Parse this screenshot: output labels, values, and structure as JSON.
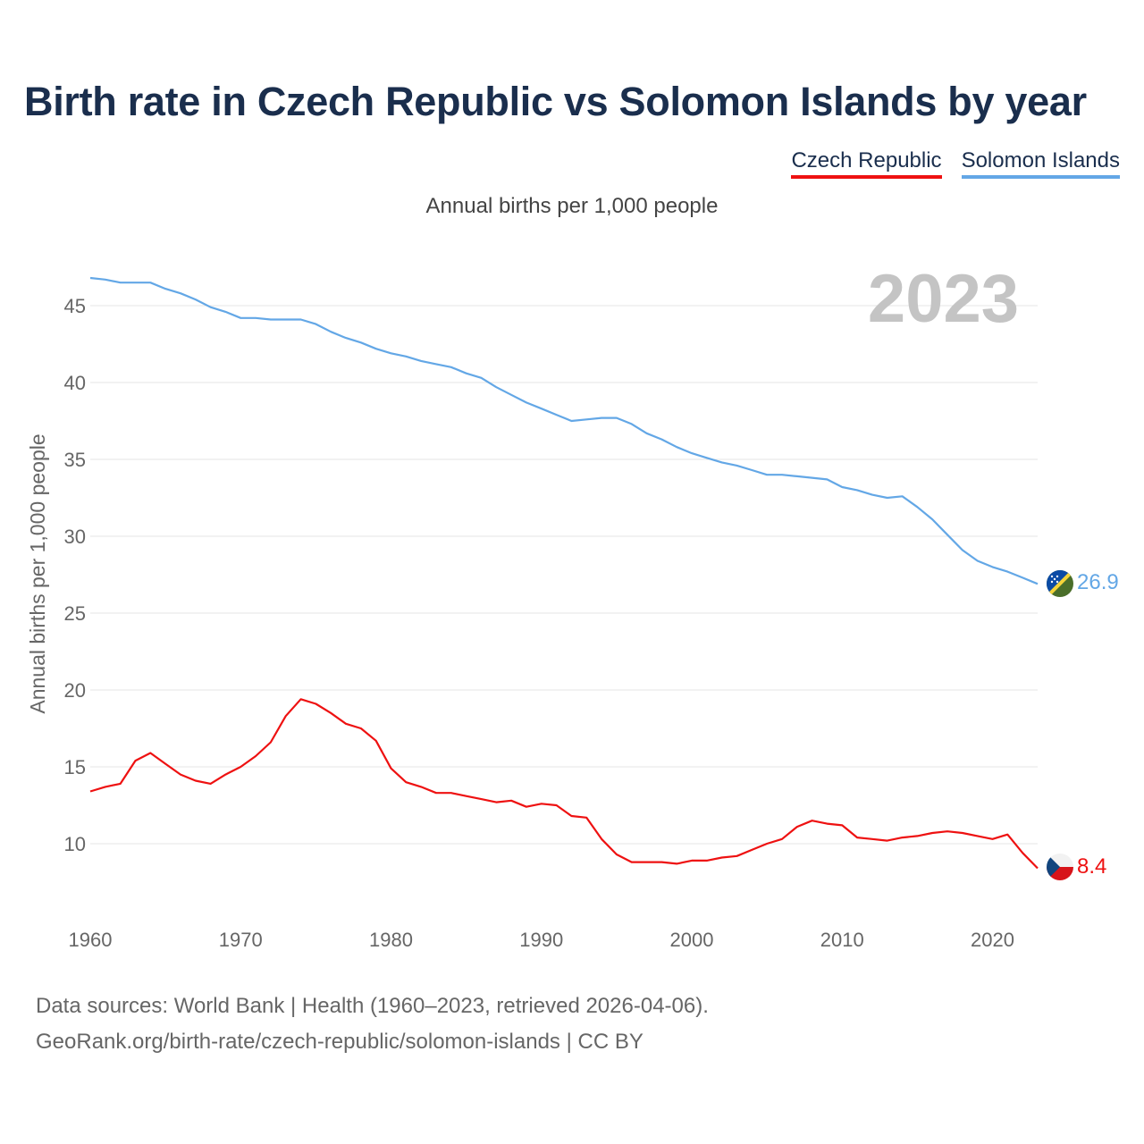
{
  "title": "Birth rate in Czech Republic vs Solomon Islands by year",
  "legend": [
    {
      "label": "Czech Republic",
      "color": "#ee1111"
    },
    {
      "label": "Solomon Islands",
      "color": "#63a7e6"
    }
  ],
  "subtitle": "Annual births per 1,000 people",
  "footer": {
    "line1": "Data sources: World Bank | Health (1960–2023, retrieved 2026-04-06).",
    "line2": "GeoRank.org/birth-rate/czech-republic/solomon-islands | CC BY"
  },
  "chart_data": {
    "type": "line",
    "title": "Birth rate in Czech Republic vs Solomon Islands by year",
    "ylabel": "Annual births per 1,000 people",
    "xlabel": "",
    "year_label": "2023",
    "xlim": [
      1960,
      2023
    ],
    "ylim": [
      5,
      47
    ],
    "yticks": [
      10,
      15,
      20,
      25,
      30,
      35,
      40,
      45
    ],
    "xticks": [
      1960,
      1970,
      1980,
      1990,
      2000,
      2010,
      2020
    ],
    "grid": true,
    "x": [
      1960,
      1961,
      1962,
      1963,
      1964,
      1965,
      1966,
      1967,
      1968,
      1969,
      1970,
      1971,
      1972,
      1973,
      1974,
      1975,
      1976,
      1977,
      1978,
      1979,
      1980,
      1981,
      1982,
      1983,
      1984,
      1985,
      1986,
      1987,
      1988,
      1989,
      1990,
      1991,
      1992,
      1993,
      1994,
      1995,
      1996,
      1997,
      1998,
      1999,
      2000,
      2001,
      2002,
      2003,
      2004,
      2005,
      2006,
      2007,
      2008,
      2009,
      2010,
      2011,
      2012,
      2013,
      2014,
      2015,
      2016,
      2017,
      2018,
      2019,
      2020,
      2021,
      2022,
      2023
    ],
    "series": [
      {
        "name": "Czech Republic",
        "color": "#ee1111",
        "end_label": "8.4",
        "values": [
          13.4,
          13.7,
          13.9,
          15.4,
          15.9,
          15.2,
          14.5,
          14.1,
          13.9,
          14.5,
          15.0,
          15.7,
          16.6,
          18.3,
          19.4,
          19.1,
          18.5,
          17.8,
          17.5,
          16.7,
          14.9,
          14.0,
          13.7,
          13.3,
          13.3,
          13.1,
          12.9,
          12.7,
          12.8,
          12.4,
          12.6,
          12.5,
          11.8,
          11.7,
          10.3,
          9.3,
          8.8,
          8.8,
          8.8,
          8.7,
          8.9,
          8.9,
          9.1,
          9.2,
          9.6,
          10.0,
          10.3,
          11.1,
          11.5,
          11.3,
          11.2,
          10.4,
          10.3,
          10.2,
          10.4,
          10.5,
          10.7,
          10.8,
          10.7,
          10.5,
          10.3,
          10.6,
          9.4,
          8.4
        ]
      },
      {
        "name": "Solomon Islands",
        "color": "#63a7e6",
        "end_label": "26.9",
        "values": [
          46.8,
          46.7,
          46.5,
          46.5,
          46.5,
          46.1,
          45.8,
          45.4,
          44.9,
          44.6,
          44.2,
          44.2,
          44.1,
          44.1,
          44.1,
          43.8,
          43.3,
          42.9,
          42.6,
          42.2,
          41.9,
          41.7,
          41.4,
          41.2,
          41.0,
          40.6,
          40.3,
          39.7,
          39.2,
          38.7,
          38.3,
          37.9,
          37.5,
          37.6,
          37.7,
          37.7,
          37.3,
          36.7,
          36.3,
          35.8,
          35.4,
          35.1,
          34.8,
          34.6,
          34.3,
          34.0,
          34.0,
          33.9,
          33.8,
          33.7,
          33.2,
          33.0,
          32.7,
          32.5,
          32.6,
          31.9,
          31.1,
          30.1,
          29.1,
          28.4,
          28.0,
          27.7,
          27.3,
          26.9
        ]
      }
    ]
  }
}
